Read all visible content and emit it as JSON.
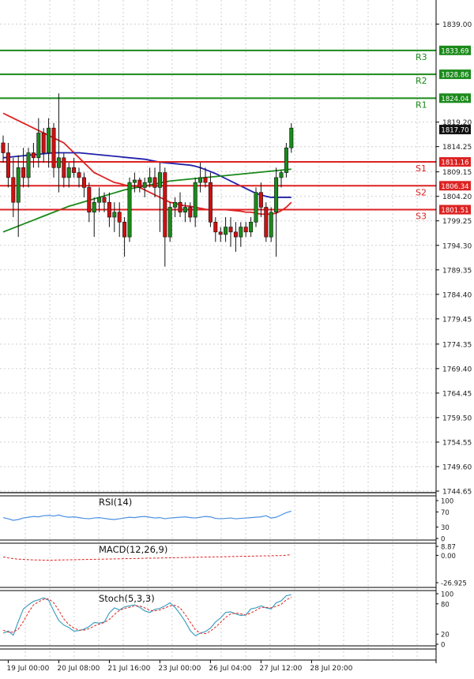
{
  "chart_data": {
    "type": "candlestick",
    "price_axis": {
      "ticks": [
        "1839.00",
        "1833.69",
        "1828.86",
        "1824.04",
        "1819.20",
        "1817.70",
        "1814.25",
        "1811.16",
        "1809.15",
        "1806.34",
        "1804.20",
        "1801.51",
        "1799.25",
        "1794.30",
        "1789.35",
        "1784.40",
        "1779.45",
        "1774.35",
        "1769.40",
        "1764.45",
        "1759.50",
        "1754.55",
        "1749.60",
        "1744.65"
      ],
      "tick_values": [
        1839.0,
        1819.2,
        1814.25,
        1809.15,
        1804.2,
        1799.25,
        1794.3,
        1789.35,
        1784.4,
        1779.45,
        1774.35,
        1769.4,
        1764.45,
        1759.5,
        1754.55,
        1749.6,
        1744.65
      ],
      "ylim": [
        1744.65,
        1841.0
      ]
    },
    "time_axis": {
      "labels": [
        "19 Jul 00:00",
        "20 Jul 08:00",
        "21 Jul 16:00",
        "23 Jul 00:00",
        "26 Jul 04:00",
        "27 Jul 12:00",
        "28 Jul 20:00"
      ],
      "label_bars": [
        1,
        11,
        21,
        31,
        41,
        51,
        61
      ]
    },
    "current_price": {
      "label": "1817.70",
      "value": 1817.7
    },
    "levels": [
      {
        "name": "R3",
        "label": "1833.69",
        "value": 1833.69,
        "color": "#1a8a1a"
      },
      {
        "name": "R2",
        "label": "1828.86",
        "value": 1828.86,
        "color": "#1a8a1a"
      },
      {
        "name": "R1",
        "label": "1824.04",
        "value": 1824.04,
        "color": "#1a8a1a"
      },
      {
        "name": "S1",
        "label": "1811.16",
        "value": 1811.16,
        "color": "#dd2222"
      },
      {
        "name": "S2",
        "label": "1806.34",
        "value": 1806.34,
        "color": "#dd2222"
      },
      {
        "name": "S3",
        "label": "1801.51",
        "value": 1801.51,
        "color": "#dd2222"
      }
    ],
    "candles": [
      [
        1815.0,
        1816.5,
        1811.0,
        1813.0
      ],
      [
        1813.0,
        1815.0,
        1806.0,
        1808.0
      ],
      [
        1808.0,
        1812.0,
        1800.0,
        1803.0
      ],
      [
        1803.0,
        1812.5,
        1796.0,
        1810.0
      ],
      [
        1810.0,
        1814.0,
        1806.0,
        1808.0
      ],
      [
        1808.0,
        1814.0,
        1806.0,
        1813.0
      ],
      [
        1813.0,
        1815.0,
        1810.0,
        1812.0
      ],
      [
        1812.0,
        1820.0,
        1810.0,
        1817.0
      ],
      [
        1817.0,
        1818.0,
        1811.0,
        1813.0
      ],
      [
        1813.0,
        1820.0,
        1810.0,
        1818.0
      ],
      [
        1818.0,
        1819.0,
        1808.0,
        1810.0
      ],
      [
        1810.0,
        1825.0,
        1805.0,
        1812.0
      ],
      [
        1812.0,
        1813.0,
        1806.0,
        1808.0
      ],
      [
        1808.0,
        1811.0,
        1806.0,
        1810.0
      ],
      [
        1810.0,
        1812.0,
        1808.0,
        1809.0
      ],
      [
        1809.0,
        1810.0,
        1806.0,
        1808.0
      ],
      [
        1808.0,
        1809.0,
        1804.0,
        1806.0
      ],
      [
        1806.0,
        1807.0,
        1799.0,
        1801.0
      ],
      [
        1801.0,
        1804.0,
        1796.0,
        1803.0
      ],
      [
        1803.0,
        1806.0,
        1801.0,
        1804.0
      ],
      [
        1804.0,
        1805.0,
        1801.0,
        1803.0
      ],
      [
        1803.0,
        1805.0,
        1798.0,
        1800.0
      ],
      [
        1800.0,
        1803.0,
        1797.0,
        1801.0
      ],
      [
        1801.0,
        1803.0,
        1796.0,
        1799.0
      ],
      [
        1799.0,
        1800.0,
        1792.0,
        1796.0
      ],
      [
        1796.0,
        1808.0,
        1795.0,
        1807.0
      ],
      [
        1807.0,
        1809.0,
        1805.0,
        1807.5
      ],
      [
        1807.5,
        1808.0,
        1805.0,
        1806.0
      ],
      [
        1806.0,
        1808.0,
        1804.0,
        1807.0
      ],
      [
        1807.0,
        1810.0,
        1806.0,
        1808.0
      ],
      [
        1808.0,
        1810.0,
        1804.0,
        1806.0
      ],
      [
        1806.0,
        1811.0,
        1797.0,
        1809.0
      ],
      [
        1809.0,
        1810.0,
        1790.0,
        1796.0
      ],
      [
        1796.0,
        1803.0,
        1795.0,
        1802.0
      ],
      [
        1802.0,
        1804.0,
        1800.0,
        1803.0
      ],
      [
        1803.0,
        1805.0,
        1800.0,
        1801.0
      ],
      [
        1801.0,
        1803.0,
        1799.0,
        1802.0
      ],
      [
        1802.0,
        1803.0,
        1799.0,
        1800.0
      ],
      [
        1800.0,
        1808.0,
        1798.0,
        1807.0
      ],
      [
        1807.0,
        1811.0,
        1805.0,
        1808.0
      ],
      [
        1808.0,
        1810.0,
        1806.0,
        1807.0
      ],
      [
        1807.0,
        1809.0,
        1798.0,
        1799.0
      ],
      [
        1799.0,
        1800.0,
        1795.0,
        1797.0
      ],
      [
        1797.0,
        1798.0,
        1795.0,
        1796.5
      ],
      [
        1796.5,
        1800.0,
        1795.0,
        1798.0
      ],
      [
        1798.0,
        1800.0,
        1794.0,
        1797.0
      ],
      [
        1797.0,
        1799.0,
        1793.0,
        1796.0
      ],
      [
        1796.0,
        1799.0,
        1794.0,
        1798.0
      ],
      [
        1798.0,
        1799.0,
        1796.0,
        1797.0
      ],
      [
        1797.0,
        1800.0,
        1796.0,
        1799.0
      ],
      [
        1799.0,
        1806.0,
        1798.0,
        1805.0
      ],
      [
        1805.0,
        1807.0,
        1800.0,
        1802.0
      ],
      [
        1802.0,
        1803.0,
        1795.0,
        1796.0
      ],
      [
        1796.0,
        1802.0,
        1795.0,
        1801.0
      ],
      [
        1801.0,
        1810.0,
        1792.0,
        1808.0
      ],
      [
        1808.0,
        1809.5,
        1806.0,
        1809.0
      ],
      [
        1809.0,
        1815.0,
        1808.0,
        1814.0
      ],
      [
        1814.0,
        1819.0,
        1813.0,
        1818.0
      ]
    ],
    "moving_averages": [
      {
        "color": "#dd2222",
        "values": [
          1821,
          1820.5,
          1820,
          1819.5,
          1819,
          1818.5,
          1818,
          1817.5,
          1817,
          1816.5,
          1816,
          1815.5,
          1815,
          1814,
          1813,
          1812,
          1811,
          1810,
          1809,
          1808.5,
          1808,
          1807.5,
          1807,
          1806.8,
          1806.5,
          1806.3,
          1806.2,
          1806,
          1805.5,
          1805,
          1804.5,
          1804,
          1803.5,
          1803,
          1802.8,
          1802.5,
          1802.3,
          1802.2,
          1802,
          1801.8,
          1801.6,
          1801.5,
          1801.5,
          1801.5,
          1801.5,
          1801.4,
          1801.3,
          1801.2,
          1801,
          1801,
          1800.8,
          1800.6,
          1800.6,
          1800.6,
          1800.8,
          1801.3,
          1802,
          1803
        ]
      },
      {
        "color": "#2222aa",
        "values": [
          1812,
          1812.1,
          1812.2,
          1812.3,
          1812.4,
          1812.5,
          1812.6,
          1812.7,
          1812.8,
          1812.9,
          1813,
          1813,
          1813,
          1813,
          1813,
          1813,
          1812.9,
          1812.8,
          1812.7,
          1812.6,
          1812.5,
          1812.4,
          1812.3,
          1812.2,
          1812.1,
          1812,
          1811.9,
          1811.8,
          1811.7,
          1811.5,
          1811.3,
          1811.1,
          1811,
          1810.9,
          1810.8,
          1810.7,
          1810.6,
          1810.5,
          1810.3,
          1810,
          1809.6,
          1809.2,
          1808.8,
          1808.3,
          1807.8,
          1807.3,
          1806.8,
          1806.3,
          1805.8,
          1805.3,
          1804.8,
          1804.5,
          1804.2,
          1804,
          1804,
          1804,
          1804,
          1804
        ]
      },
      {
        "color": "#1a8a1a",
        "values": [
          1797,
          1797.4,
          1797.8,
          1798.2,
          1798.6,
          1799,
          1799.4,
          1799.8,
          1800.2,
          1800.6,
          1801,
          1801.4,
          1801.8,
          1802.2,
          1802.5,
          1802.8,
          1803.1,
          1803.4,
          1803.7,
          1804,
          1804.3,
          1804.6,
          1804.9,
          1805.2,
          1805.5,
          1805.7,
          1805.9,
          1806.1,
          1806.3,
          1806.5,
          1806.7,
          1806.9,
          1807.1,
          1807.3,
          1807.4,
          1807.5,
          1807.6,
          1807.7,
          1807.8,
          1807.9,
          1808,
          1808.1,
          1808.2,
          1808.3,
          1808.4,
          1808.5,
          1808.6,
          1808.7,
          1808.8,
          1808.9,
          1809,
          1809.1,
          1809.2,
          1809.3,
          1809.4,
          1809.5,
          1809.6,
          1809.7
        ]
      }
    ],
    "rsi": {
      "title": "RSI(14)",
      "ticks": [
        {
          "label": "100",
          "value": 100
        },
        {
          "label": "70",
          "value": 70
        },
        {
          "label": "30",
          "value": 30
        },
        {
          "label": "0",
          "value": 0
        }
      ],
      "color": "#4a90e2",
      "values": [
        55,
        52,
        48,
        50,
        54,
        56,
        58,
        57,
        60,
        61,
        59,
        62,
        58,
        56,
        57,
        55,
        53,
        52,
        54,
        55,
        53,
        51,
        50,
        52,
        54,
        56,
        55,
        57,
        58,
        56,
        54,
        55,
        52,
        54,
        55,
        56,
        57,
        55,
        54,
        56,
        58,
        57,
        53,
        52,
        53,
        54,
        52,
        53,
        54,
        55,
        56,
        57,
        60,
        54,
        56,
        62,
        68,
        72
      ]
    },
    "macd": {
      "title": "MACD(12,26,9)",
      "ticks": [
        {
          "label": "8.87",
          "value": 8.87
        },
        {
          "label": "0.00",
          "value": 0
        },
        {
          "label": "-26.925",
          "value": -26.925
        }
      ],
      "signal_color": "#dd2222",
      "values": [
        -1.5,
        -2.5,
        -3.2,
        -3.8,
        -4.0,
        -4.3,
        -4.5,
        -4.6,
        -4.7,
        -4.7,
        -4.7,
        -4.6,
        -4.5,
        -4.4,
        -4.3,
        -4.2,
        -4.1,
        -4.0,
        -3.9,
        -3.8,
        -3.7,
        -3.6,
        -3.5,
        -3.4,
        -3.3,
        -3.2,
        -3.1,
        -3.0,
        -2.9,
        -2.8,
        -2.7,
        -2.6,
        -2.5,
        -2.4,
        -2.3,
        -2.2,
        -2.1,
        -2.0,
        -1.9,
        -1.8,
        -1.7,
        -1.6,
        -1.5,
        -1.4,
        -1.3,
        -1.2,
        -1.1,
        -1.0,
        -0.9,
        -0.8,
        -0.7,
        -0.6,
        -0.5,
        -0.4,
        -0.3,
        -0.2,
        0.2,
        0.6
      ]
    },
    "stoch": {
      "title": "Stoch(5,3,3)",
      "ticks": [
        {
          "label": "100",
          "value": 100
        },
        {
          "label": "80",
          "value": 80
        },
        {
          "label": "20",
          "value": 20
        },
        {
          "label": "0",
          "value": 0
        }
      ],
      "k_color": "#40a0c0",
      "d_color": "#dd2222",
      "k": [
        22,
        26,
        18,
        45,
        70,
        78,
        85,
        88,
        92,
        87,
        66,
        47,
        38,
        33,
        26,
        27,
        30,
        35,
        43,
        42,
        44,
        62,
        72,
        68,
        74,
        76,
        78,
        73,
        66,
        63,
        69,
        71,
        76,
        82,
        73,
        60,
        45,
        27,
        17,
        22,
        25,
        32,
        44,
        52,
        63,
        64,
        60,
        57,
        58,
        70,
        72,
        76,
        72,
        70,
        82,
        86,
        96,
        98
      ],
      "d": [
        28,
        24,
        24,
        30,
        45,
        63,
        78,
        84,
        89,
        90,
        82,
        67,
        50,
        39,
        32,
        28,
        28,
        31,
        36,
        40,
        43,
        49,
        59,
        67,
        71,
        73,
        76,
        76,
        72,
        67,
        66,
        68,
        72,
        76,
        77,
        72,
        59,
        44,
        29,
        22,
        21,
        26,
        34,
        43,
        53,
        60,
        62,
        60,
        58,
        62,
        67,
        73,
        73,
        72,
        75,
        79,
        88,
        93
      ]
    }
  }
}
